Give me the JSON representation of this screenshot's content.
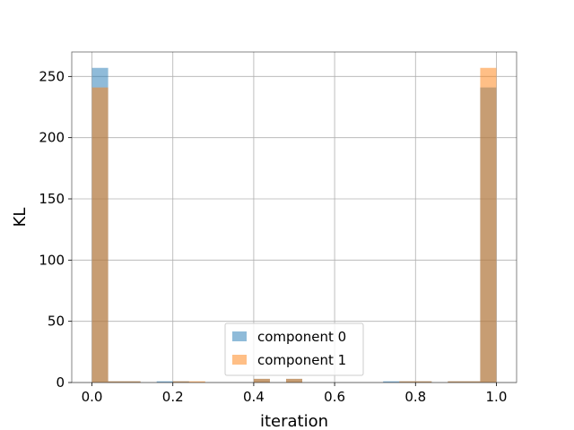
{
  "chart_data": {
    "type": "bar",
    "subtype": "histogram-overlay",
    "title": "",
    "xlabel": "iteration",
    "ylabel": "KL",
    "xlim": [
      -0.05,
      1.05
    ],
    "ylim": [
      0,
      270
    ],
    "xticks": [
      0.0,
      0.2,
      0.4,
      0.6,
      0.8,
      1.0
    ],
    "xtick_labels": [
      "0.0",
      "0.2",
      "0.4",
      "0.6",
      "0.8",
      "1.0"
    ],
    "yticks": [
      0,
      50,
      100,
      150,
      200,
      250
    ],
    "ytick_labels": [
      "0",
      "50",
      "100",
      "150",
      "200",
      "250"
    ],
    "grid": true,
    "legend_position": "lower-center",
    "bin_edges": [
      0.0,
      0.04,
      0.08,
      0.12,
      0.16,
      0.2,
      0.24,
      0.28,
      0.32,
      0.36,
      0.4,
      0.44,
      0.48,
      0.52,
      0.56,
      0.6,
      0.64,
      0.68,
      0.72,
      0.76,
      0.8,
      0.84,
      0.88,
      0.92,
      0.96,
      1.0
    ],
    "series": [
      {
        "name": "component 0",
        "color": "#1f77b4",
        "alpha": 0.5,
        "values": [
          257,
          1,
          1,
          0,
          1,
          1,
          0,
          0,
          0,
          0,
          3,
          0,
          3,
          0,
          0,
          0,
          0,
          0,
          1,
          1,
          1,
          0,
          1,
          1,
          241
        ]
      },
      {
        "name": "component 1",
        "color": "#ff7f0e",
        "alpha": 0.5,
        "values": [
          241,
          1,
          1,
          0,
          0,
          1,
          1,
          0,
          0,
          0,
          3,
          0,
          3,
          0,
          0,
          0,
          0,
          0,
          0,
          1,
          1,
          0,
          1,
          1,
          257
        ]
      }
    ]
  }
}
